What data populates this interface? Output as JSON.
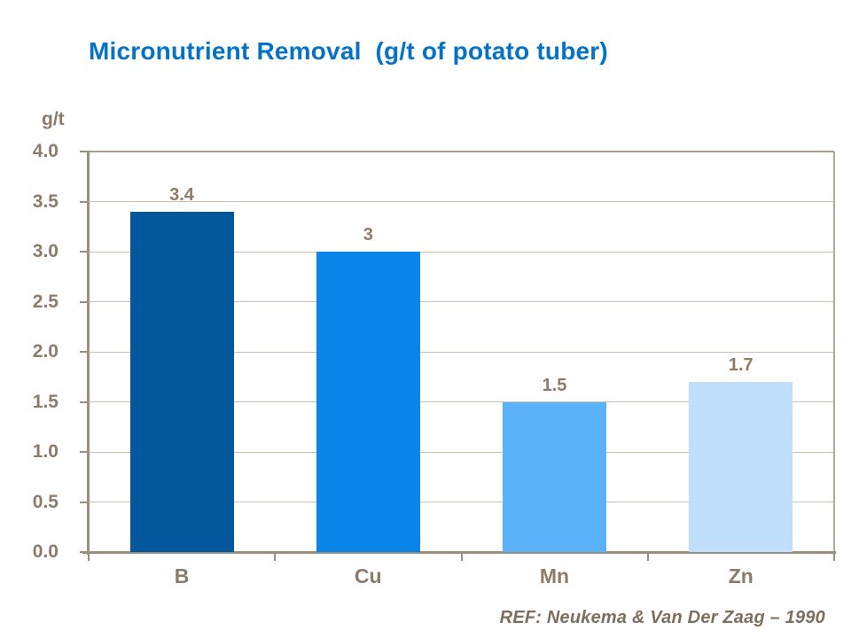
{
  "title": "Micronutrient Removal  (g/t of potato tuber)",
  "footer": {
    "ref": "REF: Neukema & Van Der Zaag – 1990"
  },
  "chart_data": {
    "type": "bar",
    "title": "Micronutrient Removal (g/t of potato tuber)",
    "xlabel": "",
    "ylabel": "g/t",
    "categories": [
      "B",
      "Cu",
      "Mn",
      "Zn"
    ],
    "values": [
      3.4,
      3,
      1.5,
      1.7
    ],
    "value_labels": [
      "3.4",
      "3",
      "1.5",
      "1.7"
    ],
    "bar_colors": [
      "#02589B",
      "#0A86E9",
      "#5AB2F8",
      "#BFDFFB"
    ],
    "ylim": [
      0,
      4
    ],
    "ytick_step": 0.5,
    "ytick_labels": [
      "0.0",
      "0.5",
      "1.0",
      "1.5",
      "2.0",
      "2.5",
      "3.0",
      "3.5",
      "4.0"
    ],
    "grid": true,
    "legend": false
  },
  "colors": {
    "title": "#0572C8",
    "label_text": "#8B7B67",
    "axis": "#9A8E7E",
    "gridline": "#C9C0B3",
    "border": "#B3A99B",
    "top_border": "#A89D8D",
    "ref_text": "#7E6F5C"
  }
}
